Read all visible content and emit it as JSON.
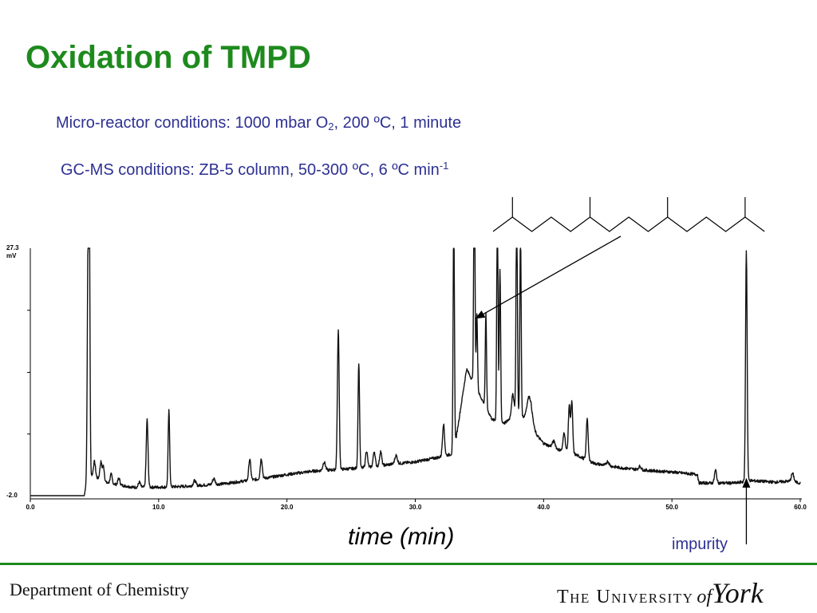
{
  "slide": {
    "title": "Oxidation of TMPD",
    "conditions": {
      "reactor_prefix": "Micro-reactor conditions: 1000 mbar O",
      "reactor_sub": "2",
      "reactor_suffix": ", 200 ºC, 1  minute",
      "gcms_prefix": "GC-MS conditions: ZB-5 column, 50-300 ºC, 6 ºC min",
      "gcms_sup": "-1"
    },
    "annotation_impurity": "impurity",
    "footer": {
      "department": "Department of Chemistry",
      "logo_the": "The University",
      "logo_of": "of",
      "logo_york": "York"
    }
  },
  "colors": {
    "title": "#1e8a1e",
    "text_blue": "#2e3192",
    "trace": "#111111",
    "rule": "#1e8a1e"
  },
  "chart_data": {
    "type": "line",
    "xlabel": "time (min)",
    "ylabel": "",
    "xlim": [
      0,
      60
    ],
    "ylim": [
      -2.0,
      27.3
    ],
    "y_tick_labels": [
      {
        "value": 27.3,
        "label": "27.3"
      },
      {
        "value": -2.0,
        "label": "-2.0"
      }
    ],
    "y_unit": "mV",
    "y_minor_ticks": [
      5.3,
      12.6,
      19.95
    ],
    "x_ticks": [
      {
        "value": 0,
        "label": "0.0"
      },
      {
        "value": 10,
        "label": "10.0"
      },
      {
        "value": 20,
        "label": "20.0"
      },
      {
        "value": 30,
        "label": "30.0"
      },
      {
        "value": 40,
        "label": "40.0"
      },
      {
        "value": 50,
        "label": "50.0"
      },
      {
        "value": 60,
        "label": "60.0"
      }
    ],
    "baseline": [
      [
        0,
        -2.0
      ],
      [
        4.2,
        -2.0
      ],
      [
        4.5,
        0.6
      ],
      [
        6,
        -0.5
      ],
      [
        8,
        -1.0
      ],
      [
        10,
        -1.0
      ],
      [
        12,
        -0.9
      ],
      [
        15,
        -0.6
      ],
      [
        18,
        0.0
      ],
      [
        20,
        0.5
      ],
      [
        22,
        0.9
      ],
      [
        24,
        1.1
      ],
      [
        26,
        1.3
      ],
      [
        28,
        1.7
      ],
      [
        30,
        2.0
      ],
      [
        32,
        2.6
      ],
      [
        33,
        3.0
      ],
      [
        34,
        13.0
      ],
      [
        35,
        10.0
      ],
      [
        36,
        7.0
      ],
      [
        37,
        6.6
      ],
      [
        38,
        8.0
      ],
      [
        39,
        6.0
      ],
      [
        40,
        4.2
      ],
      [
        41,
        3.5
      ],
      [
        42,
        3.2
      ],
      [
        43,
        2.5
      ],
      [
        44,
        1.8
      ],
      [
        46,
        1.3
      ],
      [
        48,
        1.0
      ],
      [
        50,
        0.8
      ],
      [
        52,
        0.5
      ],
      [
        52.1,
        -0.5
      ],
      [
        54,
        -0.5
      ],
      [
        55,
        -0.5
      ],
      [
        56,
        -0.2
      ],
      [
        58,
        -0.4
      ],
      [
        59,
        -0.3
      ],
      [
        60,
        -0.5
      ]
    ],
    "peaks": [
      {
        "t": 4.5,
        "h": 27.3,
        "w": 0.06
      },
      {
        "t": 4.6,
        "h": 27.3,
        "w": 0.05
      },
      {
        "t": 5.0,
        "h": 1.8,
        "w": 0.08
      },
      {
        "t": 5.5,
        "h": 2.1,
        "w": 0.08
      },
      {
        "t": 5.7,
        "h": 1.7,
        "w": 0.07
      },
      {
        "t": 6.3,
        "h": 1.1,
        "w": 0.08
      },
      {
        "t": 6.9,
        "h": 0.8,
        "w": 0.08
      },
      {
        "t": 8.5,
        "h": 0.6,
        "w": 0.08
      },
      {
        "t": 9.1,
        "h": 8.0,
        "w": 0.07
      },
      {
        "t": 10.8,
        "h": 9.0,
        "w": 0.06
      },
      {
        "t": 12.8,
        "h": 0.6,
        "w": 0.1
      },
      {
        "t": 14.3,
        "h": 0.7,
        "w": 0.1
      },
      {
        "t": 17.1,
        "h": 2.5,
        "w": 0.08
      },
      {
        "t": 18.0,
        "h": 2.4,
        "w": 0.08
      },
      {
        "t": 22.9,
        "h": 1.0,
        "w": 0.1
      },
      {
        "t": 24.0,
        "h": 16.5,
        "w": 0.07
      },
      {
        "t": 25.6,
        "h": 12.5,
        "w": 0.06
      },
      {
        "t": 26.2,
        "h": 2.0,
        "w": 0.08
      },
      {
        "t": 26.8,
        "h": 1.8,
        "w": 0.08
      },
      {
        "t": 27.3,
        "h": 1.7,
        "w": 0.08
      },
      {
        "t": 28.5,
        "h": 1.0,
        "w": 0.1
      },
      {
        "t": 32.2,
        "h": 3.8,
        "w": 0.08
      },
      {
        "t": 33.0,
        "h": 27.3,
        "w": 0.05
      },
      {
        "t": 34.6,
        "h": 27.3,
        "w": 0.05
      },
      {
        "t": 34.8,
        "h": 9.0,
        "w": 0.05
      },
      {
        "t": 35.5,
        "h": 11.0,
        "w": 0.05
      },
      {
        "t": 36.4,
        "h": 27.3,
        "w": 0.05
      },
      {
        "t": 36.6,
        "h": 18.0,
        "w": 0.05
      },
      {
        "t": 37.6,
        "h": 2.5,
        "w": 0.1
      },
      {
        "t": 37.9,
        "h": 27.3,
        "w": 0.05
      },
      {
        "t": 38.2,
        "h": 22.0,
        "w": 0.05
      },
      {
        "t": 38.9,
        "h": 3.5,
        "w": 0.2
      },
      {
        "t": 40.8,
        "h": 0.8,
        "w": 0.12
      },
      {
        "t": 41.6,
        "h": 2.2,
        "w": 0.08
      },
      {
        "t": 42.0,
        "h": 5.5,
        "w": 0.07
      },
      {
        "t": 42.2,
        "h": 6.0,
        "w": 0.07
      },
      {
        "t": 43.4,
        "h": 5.0,
        "w": 0.07
      },
      {
        "t": 45.0,
        "h": 0.5,
        "w": 0.1
      },
      {
        "t": 47.5,
        "h": 0.4,
        "w": 0.1
      },
      {
        "t": 53.4,
        "h": 1.5,
        "w": 0.08
      },
      {
        "t": 55.8,
        "h": 27.3,
        "w": 0.06
      },
      {
        "t": 59.4,
        "h": 1.0,
        "w": 0.1
      }
    ],
    "annotations": [
      {
        "text": "impurity",
        "target_t": 55.8,
        "target_y": 0.0
      },
      {
        "structure": "branched alkane skeleton",
        "target_t": 34.6,
        "target_y": 19.0
      }
    ]
  }
}
